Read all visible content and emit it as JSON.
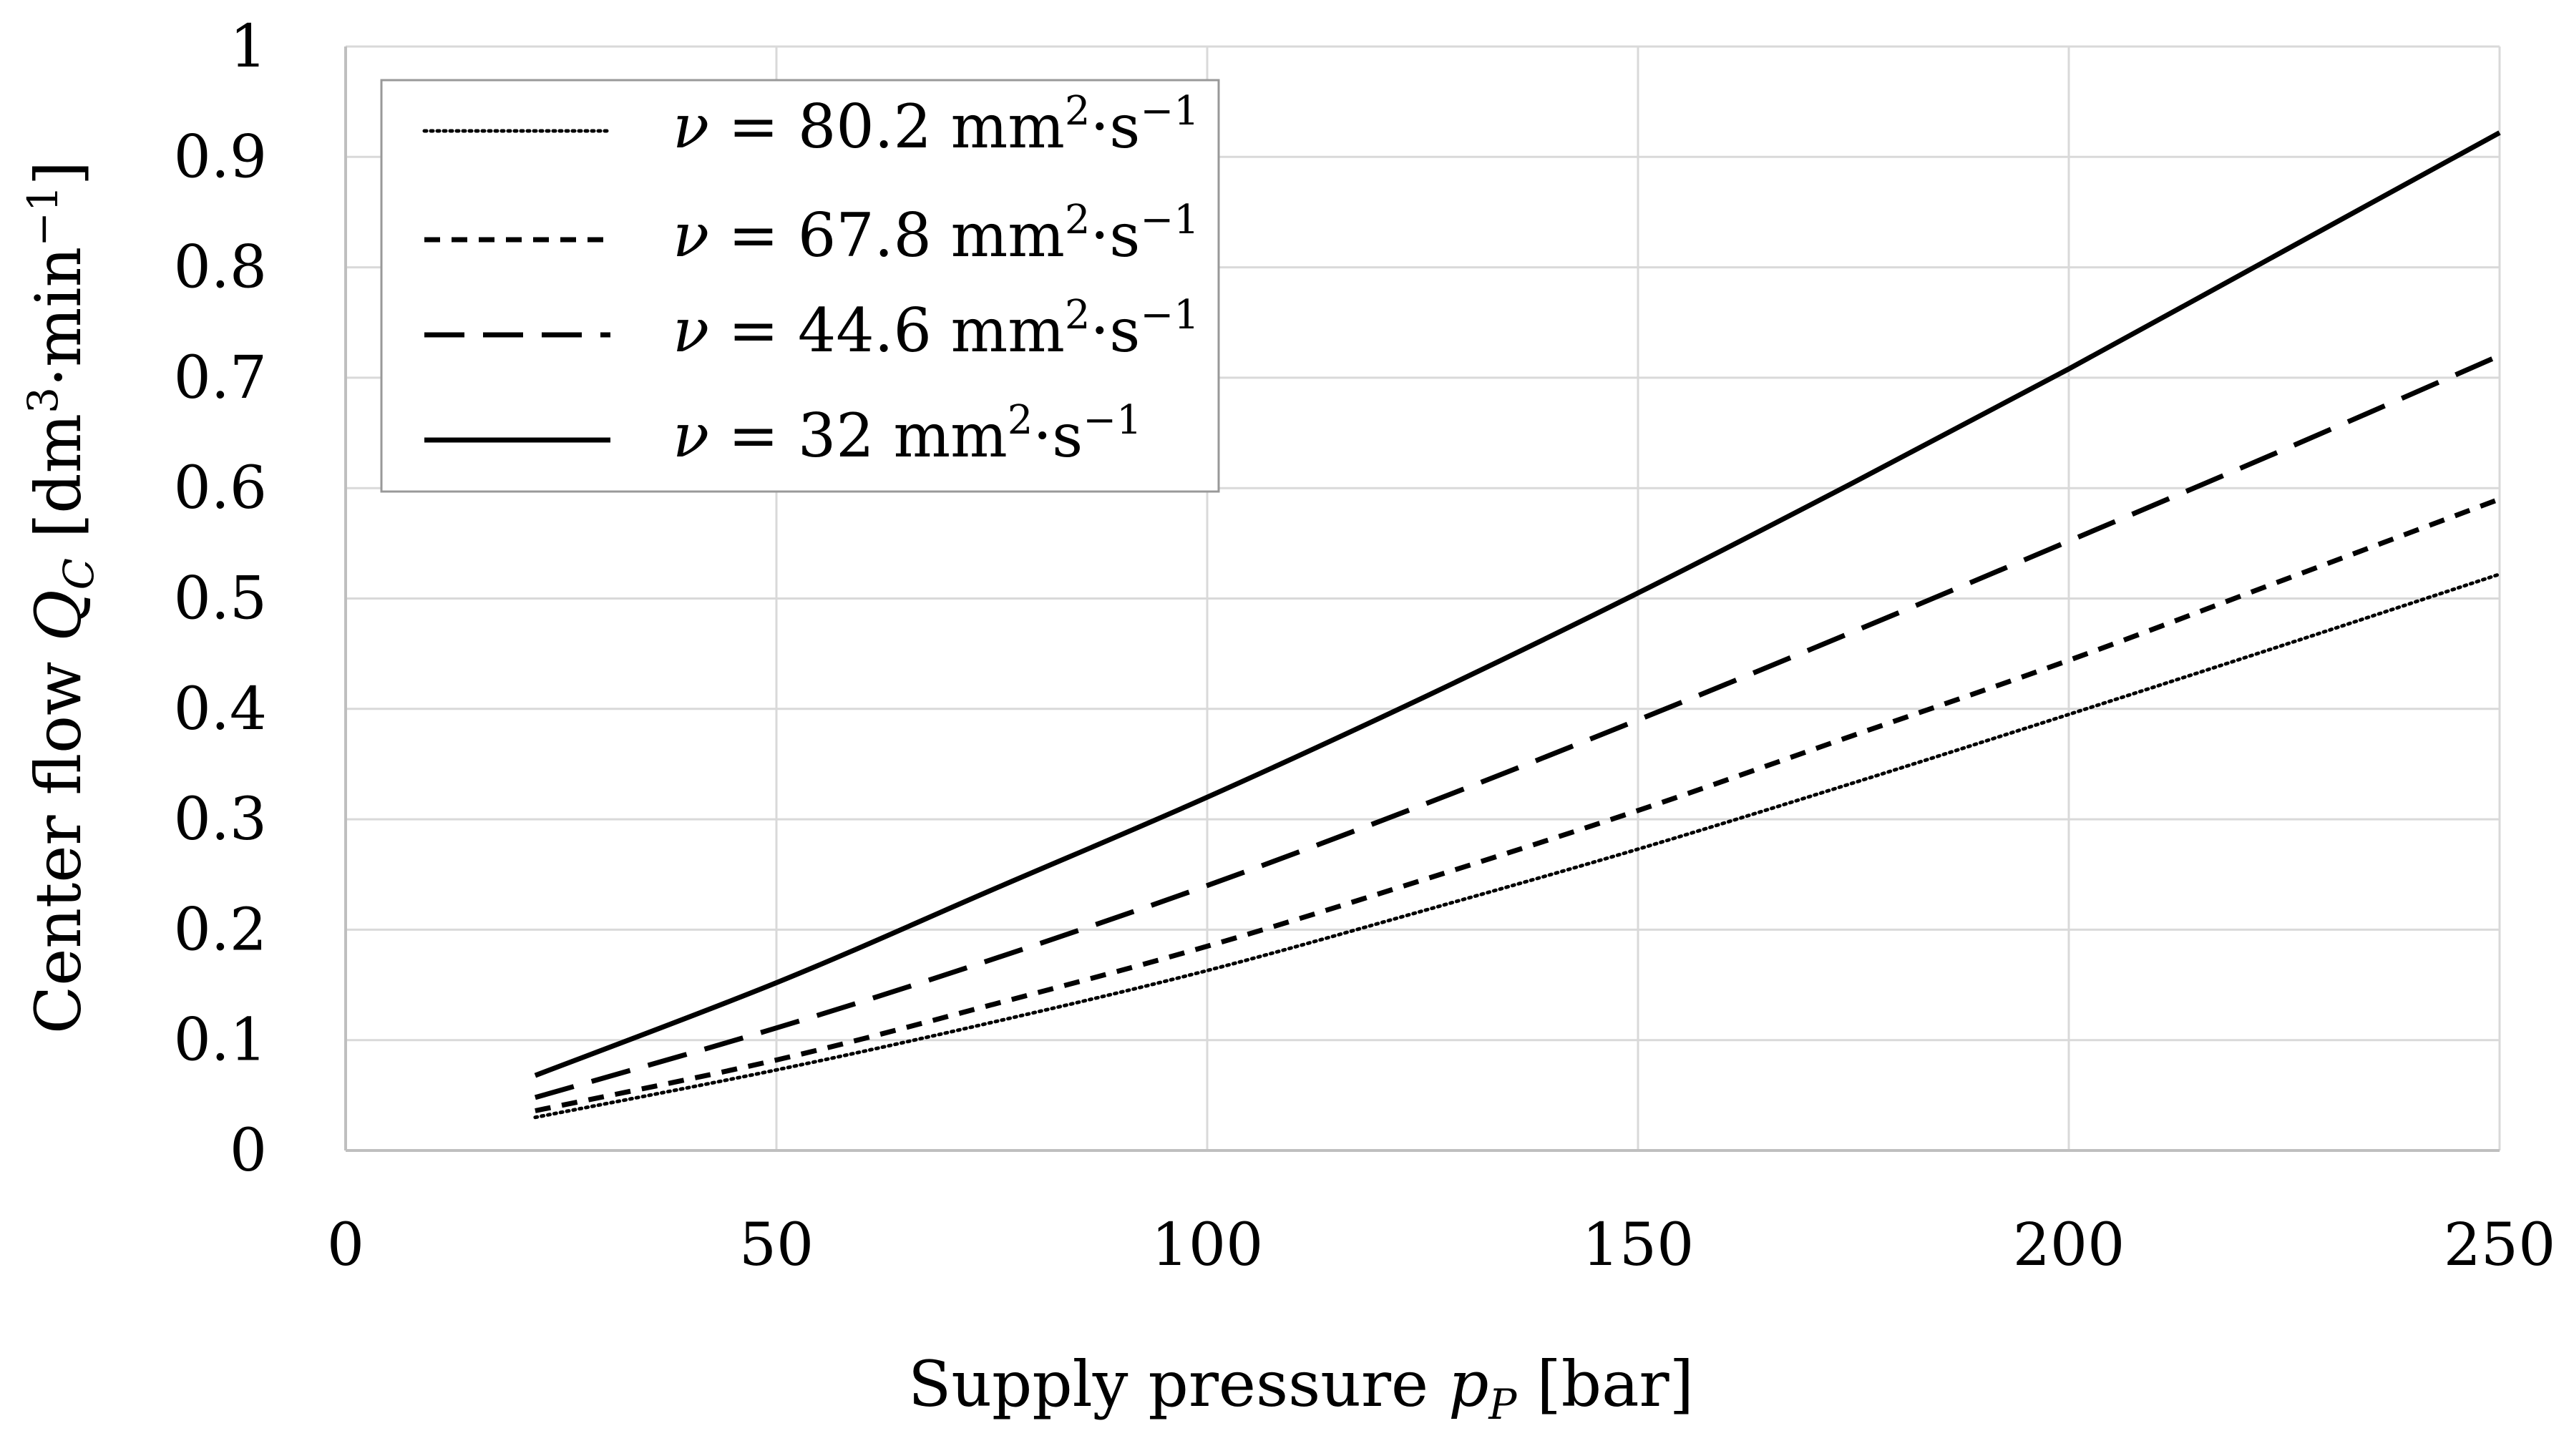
{
  "chart_data": {
    "type": "line",
    "title": "",
    "xlabel": {
      "prefix": "Supply pressure ",
      "symbol": "p",
      "subscript": "P",
      "unit": " [bar]"
    },
    "ylabel": {
      "prefix": "Center flow ",
      "symbol": "Q",
      "subscript": "C",
      "unit_open": " [dm",
      "unit_sup1": "3",
      "unit_mid": "·min",
      "unit_sup2": "−1",
      "unit_close": "]"
    },
    "xlim": [
      0,
      250
    ],
    "ylim": [
      0,
      1
    ],
    "x_ticks": [
      {
        "value": 0,
        "label": "0"
      },
      {
        "value": 50,
        "label": "50"
      },
      {
        "value": 100,
        "label": "100"
      },
      {
        "value": 150,
        "label": "150"
      },
      {
        "value": 200,
        "label": "200"
      },
      {
        "value": 250,
        "label": "250"
      }
    ],
    "y_ticks": [
      {
        "value": 0,
        "label": "0"
      },
      {
        "value": 0.1,
        "label": "0.1"
      },
      {
        "value": 0.2,
        "label": "0.2"
      },
      {
        "value": 0.3,
        "label": "0.3"
      },
      {
        "value": 0.4,
        "label": "0.4"
      },
      {
        "value": 0.5,
        "label": "0.5"
      },
      {
        "value": 0.6,
        "label": "0.6"
      },
      {
        "value": 0.7,
        "label": "0.7"
      },
      {
        "value": 0.8,
        "label": "0.8"
      },
      {
        "value": 0.9,
        "label": "0.9"
      },
      {
        "value": 1,
        "label": "1"
      }
    ],
    "grid": true,
    "legend_position": "top-left",
    "x": [
      22,
      50,
      75,
      100,
      125,
      150,
      175,
      200,
      225,
      250
    ],
    "series": [
      {
        "name": "ν = 80.2 mm2·s−1",
        "nu": "ν",
        "value_text": " = 80.2 mm",
        "sup_a": "2",
        "mid_text": "·s",
        "sup_b": "−1",
        "style": "dotted",
        "values": [
          0.03,
          0.073,
          0.116,
          0.163,
          0.217,
          0.273,
          0.333,
          0.395,
          0.458,
          0.522
        ]
      },
      {
        "name": "ν = 67.8 mm2·s−1",
        "nu": "ν",
        "value_text": " = 67.8 mm",
        "sup_a": "2",
        "mid_text": "·s",
        "sup_b": "−1",
        "style": "short-dash",
        "values": [
          0.036,
          0.082,
          0.132,
          0.185,
          0.245,
          0.308,
          0.376,
          0.444,
          0.517,
          0.59
        ]
      },
      {
        "name": "ν = 44.6 mm2·s−1",
        "nu": "ν",
        "value_text": " = 44.6 mm",
        "sup_a": "2",
        "mid_text": "·s",
        "sup_b": "−1",
        "style": "long-dash",
        "values": [
          0.048,
          0.111,
          0.173,
          0.24,
          0.313,
          0.39,
          0.47,
          0.552,
          0.635,
          0.72
        ]
      },
      {
        "name": "ν = 32 mm2·s−1",
        "nu": "ν",
        "value_text": " = 32 mm",
        "sup_a": "2",
        "mid_text": "·s",
        "sup_b": "−1",
        "style": "solid",
        "values": [
          0.068,
          0.152,
          0.236,
          0.32,
          0.41,
          0.505,
          0.605,
          0.708,
          0.815,
          0.922
        ]
      }
    ]
  }
}
